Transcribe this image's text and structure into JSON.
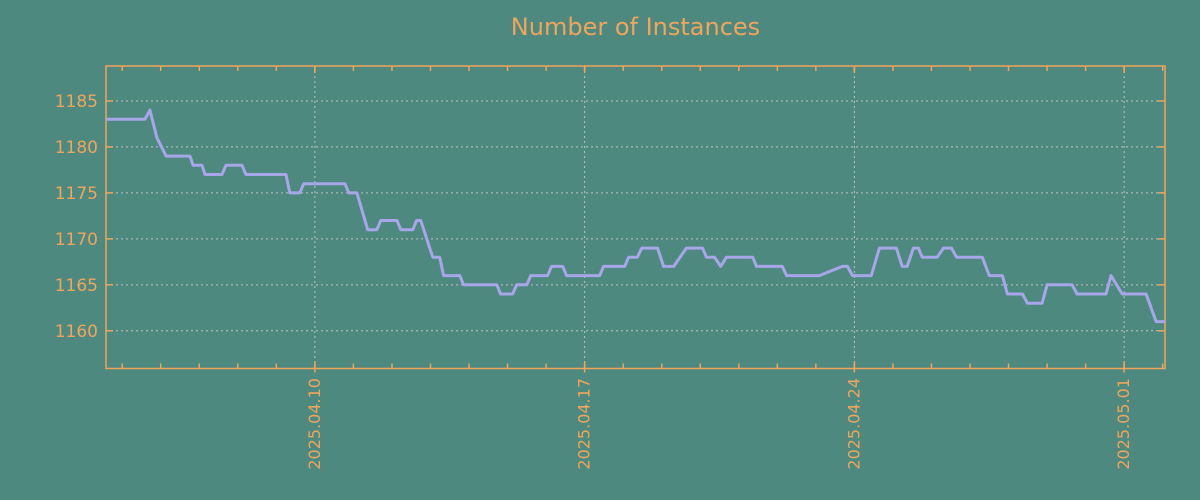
{
  "colors": {
    "background": "#4E897F",
    "accent_orange": "#F0A45C",
    "line_purple": "#A6A6E8",
    "grid_gray": "#C2C2C2"
  },
  "chart_data": {
    "type": "line",
    "title": "Number of Instances",
    "grid": "dotted",
    "legend": false,
    "x_axis": {
      "unit": "days relative to 2025.04.10",
      "xlim_days": [
        -5.42,
        22.06
      ],
      "tick_days": [
        0,
        7,
        14,
        21
      ],
      "tick_labels": [
        "2025.04.10",
        "2025.04.17",
        "2025.04.24",
        "2025.05.01"
      ],
      "minor_tick_interval_days": 1,
      "tick_label_rotation_deg": 90
    },
    "y_axis": {
      "ylim": [
        1155.9,
        1188.8
      ],
      "ticks": [
        1160,
        1165,
        1170,
        1175,
        1180,
        1185
      ]
    },
    "series": [
      {
        "name": "instances",
        "color": "#A6A6E8",
        "points_day_value": [
          [
            -5.42,
            1183
          ],
          [
            -4.41,
            1183
          ],
          [
            -4.28,
            1184
          ],
          [
            -4.1,
            1181
          ],
          [
            -3.86,
            1179
          ],
          [
            -3.24,
            1179
          ],
          [
            -3.16,
            1178
          ],
          [
            -2.93,
            1178
          ],
          [
            -2.85,
            1177
          ],
          [
            -2.41,
            1177
          ],
          [
            -2.31,
            1178
          ],
          [
            -1.89,
            1178
          ],
          [
            -1.79,
            1177
          ],
          [
            -0.75,
            1177
          ],
          [
            -0.65,
            1175
          ],
          [
            -0.39,
            1175
          ],
          [
            -0.29,
            1176
          ],
          [
            0.78,
            1176
          ],
          [
            0.88,
            1175
          ],
          [
            1.09,
            1175
          ],
          [
            1.37,
            1171
          ],
          [
            1.61,
            1171
          ],
          [
            1.71,
            1172
          ],
          [
            2.13,
            1172
          ],
          [
            2.23,
            1171
          ],
          [
            2.54,
            1171
          ],
          [
            2.64,
            1172
          ],
          [
            2.75,
            1172
          ],
          [
            2.98,
            1169
          ],
          [
            3.06,
            1168
          ],
          [
            3.24,
            1168
          ],
          [
            3.34,
            1166
          ],
          [
            3.76,
            1166
          ],
          [
            3.86,
            1165
          ],
          [
            4.72,
            1165
          ],
          [
            4.82,
            1164
          ],
          [
            5.13,
            1164
          ],
          [
            5.24,
            1165
          ],
          [
            5.5,
            1165
          ],
          [
            5.6,
            1166
          ],
          [
            6.04,
            1166
          ],
          [
            6.14,
            1167
          ],
          [
            6.43,
            1167
          ],
          [
            6.53,
            1166
          ],
          [
            7.39,
            1166
          ],
          [
            7.49,
            1167
          ],
          [
            8.04,
            1167
          ],
          [
            8.14,
            1168
          ],
          [
            8.37,
            1168
          ],
          [
            8.48,
            1169
          ],
          [
            8.89,
            1169
          ],
          [
            9.05,
            1167
          ],
          [
            9.31,
            1167
          ],
          [
            9.64,
            1169
          ],
          [
            10.06,
            1169
          ],
          [
            10.16,
            1168
          ],
          [
            10.37,
            1168
          ],
          [
            10.53,
            1167
          ],
          [
            10.68,
            1168
          ],
          [
            11.36,
            1168
          ],
          [
            11.46,
            1167
          ],
          [
            12.13,
            1167
          ],
          [
            12.24,
            1166
          ],
          [
            13.09,
            1166
          ],
          [
            13.69,
            1167
          ],
          [
            13.82,
            1167
          ],
          [
            13.95,
            1166
          ],
          [
            14.44,
            1166
          ],
          [
            14.65,
            1169
          ],
          [
            15.09,
            1169
          ],
          [
            15.24,
            1167
          ],
          [
            15.37,
            1167
          ],
          [
            15.53,
            1169
          ],
          [
            15.66,
            1169
          ],
          [
            15.76,
            1168
          ],
          [
            16.15,
            1168
          ],
          [
            16.31,
            1169
          ],
          [
            16.52,
            1169
          ],
          [
            16.65,
            1168
          ],
          [
            17.32,
            1168
          ],
          [
            17.5,
            1166
          ],
          [
            17.84,
            1166
          ],
          [
            17.97,
            1164
          ],
          [
            18.36,
            1164
          ],
          [
            18.49,
            1163
          ],
          [
            18.87,
            1163
          ],
          [
            19,
            1165
          ],
          [
            19.65,
            1165
          ],
          [
            19.78,
            1164
          ],
          [
            20.53,
            1164
          ],
          [
            20.66,
            1166
          ],
          [
            20.95,
            1164
          ],
          [
            21.57,
            1164
          ],
          [
            21.83,
            1161
          ],
          [
            22.06,
            1161
          ]
        ]
      }
    ]
  }
}
